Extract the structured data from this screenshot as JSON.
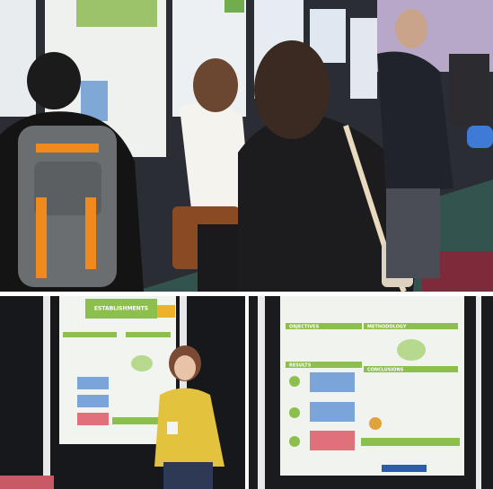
{
  "bottom_left": {
    "poster_title": "ESTABLISHMENTS"
  },
  "bottom_right": {
    "sections": [
      "OBJECTIVES",
      "METHODOLOGY",
      "RESULTS",
      "CONCLUSIONS"
    ]
  }
}
